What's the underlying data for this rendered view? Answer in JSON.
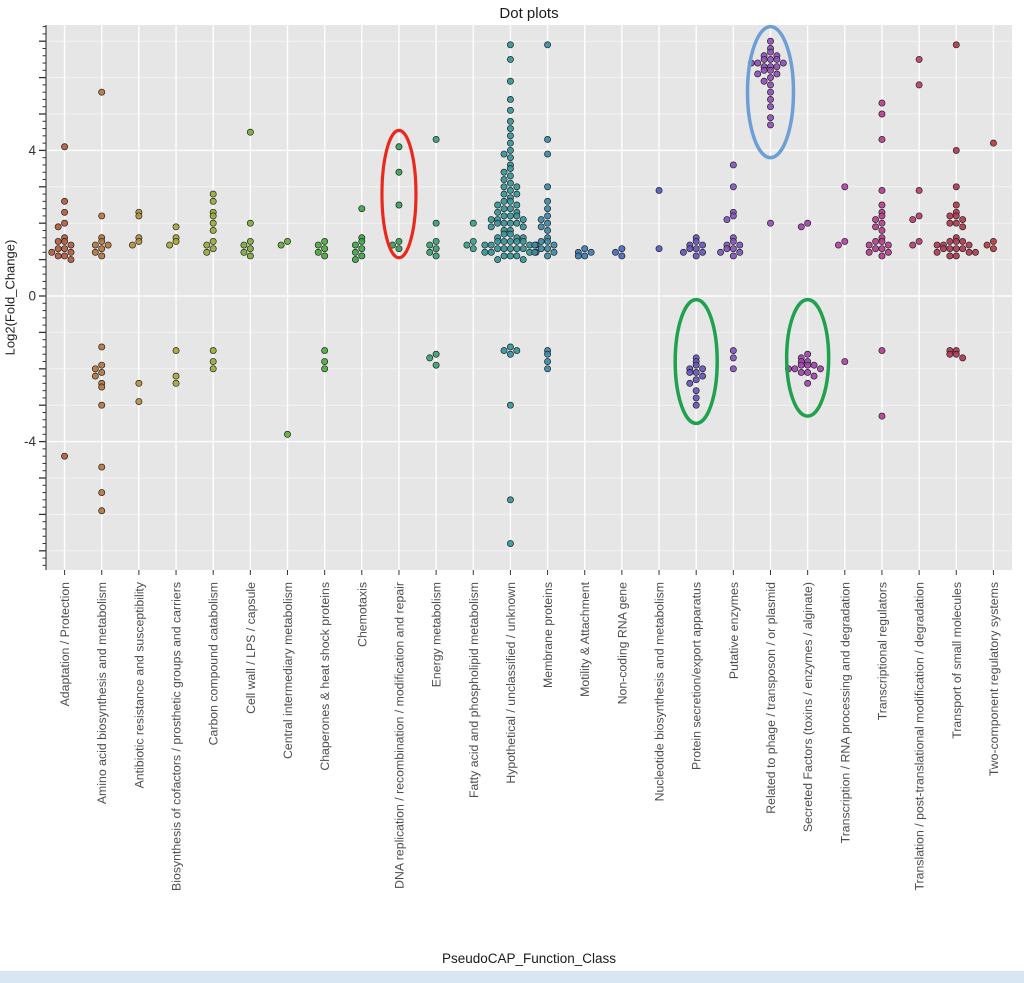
{
  "title": "Dot plots",
  "axes": {
    "x_title": "PseudoCAP_Function_Class",
    "y_title": "Log2(Fold_Change)",
    "y_tick_labels": [
      "4",
      "0",
      "-4"
    ],
    "y_tick_values": [
      4,
      0,
      -4
    ]
  },
  "colors": {
    "panel_bg": "#e6e6e6",
    "grid": "#ffffff",
    "dot_stroke": "#222222",
    "axis_text": "#4d4d4d",
    "tick_color": "#333333",
    "bottom_strip": "#d8e6f3",
    "annotation_red": "#e8291c",
    "annotation_blue": "#6d9ed6",
    "annotation_green": "#1fa14e"
  },
  "category_colors": [
    "hsl(15,50%,47%)",
    "hsl(29,50%,47%)",
    "hsl(43,50%,47%)",
    "hsl(57,50%,45%)",
    "hsl(71,50%,45%)",
    "hsl(85,50%,45%)",
    "hsl(98,50%,45%)",
    "hsl(112,50%,45%)",
    "hsl(126,50%,44%)",
    "hsl(140,50%,42%)",
    "hsl(154,50%,42%)",
    "hsl(168,50%,42%)",
    "hsl(182,50%,40%)",
    "hsl(196,50%,44%)",
    "hsl(209,50%,48%)",
    "hsl(223,50%,52%)",
    "hsl(237,45%,54%)",
    "hsl(251,45%,54%)",
    "hsl(265,45%,54%)",
    "hsl(278,45%,52%)",
    "hsl(292,45%,48%)",
    "hsl(306,48%,48%)",
    "hsl(320,50%,48%)",
    "hsl(334,50%,48%)",
    "hsl(347,52%,46%)",
    "hsl(1,52%,47%)"
  ],
  "chart_data": {
    "type": "scatter",
    "title": "Dot plots",
    "xlabel": "PseudoCAP_Function_Class",
    "ylabel": "Log2(Fold_Change)",
    "ylim": [
      -7.6,
      7.5
    ],
    "y_major_ticks": [
      4,
      0,
      -4
    ],
    "grid": true,
    "legend": "none",
    "categories": [
      "Adaptation / Protection",
      "Amino acid biosynthesis and metabolism",
      "Antibiotic resistance and susceptibility",
      "Biosynthesis of cofactors / prosthetic groups and carriers",
      "Carbon compound catabolism",
      "Cell wall / LPS / capsule",
      "Central intermediary metabolism",
      "Chaperones & heat shock proteins",
      "Chemotaxis",
      "DNA replication / recombination / modification and repair",
      "Energy metabolism",
      "Fatty acid and phospholipid metabolism",
      "Hypothetical / unclassified / unknown",
      "Membrane proteins",
      "Motility & Attachment",
      "Non-coding RNA gene",
      "Nucleotide biosynthesis and metabolism",
      "Protein secretion/export apparatus",
      "Putative enzymes",
      "Related to phage / transposon / or plasmid",
      "Secreted Factors (toxins / enzymes / alginate)",
      "Transcription / RNA processing and degradation",
      "Transcriptional regulators",
      "Translation / post-translational modification / degradation",
      "Transport of small molecules",
      "Two-component regulatory systems"
    ],
    "series": [
      {
        "name": "Adaptation / Protection",
        "values": [
          4.1,
          2.6,
          2.3,
          2.0,
          1.9,
          1.6,
          1.5,
          1.5,
          1.4,
          1.3,
          1.3,
          1.2,
          1.2,
          1.1,
          1.1,
          1.0,
          -4.4
        ]
      },
      {
        "name": "Amino acid biosynthesis and metabolism",
        "values": [
          5.6,
          2.2,
          1.6,
          1.5,
          1.4,
          1.4,
          1.3,
          1.2,
          1.1,
          -1.4,
          -1.9,
          -2.0,
          -2.1,
          -2.2,
          -2.4,
          -2.5,
          -3.0,
          -4.7,
          -5.4,
          -5.9
        ]
      },
      {
        "name": "Antibiotic resistance and susceptibility",
        "values": [
          2.3,
          2.2,
          1.6,
          1.5,
          1.4,
          -2.4,
          -2.9
        ]
      },
      {
        "name": "Biosynthesis of cofactors / prosthetic groups and carriers",
        "values": [
          1.9,
          1.6,
          1.5,
          1.4,
          -1.5,
          -2.2,
          -2.4
        ]
      },
      {
        "name": "Carbon compound catabolism",
        "values": [
          2.8,
          2.6,
          2.3,
          2.2,
          2.0,
          1.8,
          1.5,
          1.4,
          1.3,
          1.2,
          -1.5,
          -1.8,
          -2.0
        ]
      },
      {
        "name": "Cell wall / LPS / capsule",
        "values": [
          4.5,
          2.0,
          1.5,
          1.4,
          1.3,
          1.2,
          1.1
        ]
      },
      {
        "name": "Central intermediary metabolism",
        "values": [
          1.5,
          1.4,
          -3.8
        ]
      },
      {
        "name": "Chaperones & heat shock proteins",
        "values": [
          1.5,
          1.4,
          1.3,
          1.2,
          1.1,
          -1.5,
          -1.8,
          -2.0
        ]
      },
      {
        "name": "Chemotaxis",
        "values": [
          2.4,
          1.6,
          1.5,
          1.4,
          1.3,
          1.2,
          1.1,
          1.0
        ]
      },
      {
        "name": "DNA replication / recombination / modification and repair",
        "values": [
          4.1,
          3.4,
          2.5,
          1.5,
          1.4,
          1.3
        ]
      },
      {
        "name": "Energy metabolism",
        "values": [
          4.3,
          2.0,
          1.5,
          1.4,
          1.3,
          1.2,
          1.1,
          -1.6,
          -1.7,
          -1.9
        ]
      },
      {
        "name": "Fatty acid and phospholipid metabolism",
        "values": [
          2.0,
          1.5,
          1.4,
          1.3
        ]
      },
      {
        "name": "Hypothetical / unclassified / unknown",
        "values": [
          6.9,
          6.5,
          5.9,
          5.4,
          5.1,
          4.8,
          4.6,
          4.4,
          4.2,
          4.0,
          3.9,
          3.8,
          3.6,
          3.5,
          3.4,
          3.3,
          3.2,
          3.1,
          3.0,
          3.0,
          2.9,
          2.8,
          2.8,
          2.7,
          2.6,
          2.6,
          2.5,
          2.5,
          2.4,
          2.4,
          2.3,
          2.3,
          2.2,
          2.2,
          2.2,
          2.1,
          2.1,
          2.1,
          2.0,
          2.0,
          2.0,
          2.0,
          1.9,
          1.9,
          1.8,
          1.8,
          1.7,
          1.7,
          1.6,
          1.6,
          1.6,
          1.5,
          1.5,
          1.5,
          1.5,
          1.5,
          1.4,
          1.4,
          1.4,
          1.4,
          1.3,
          1.3,
          1.3,
          1.3,
          1.3,
          1.2,
          1.2,
          1.2,
          1.2,
          1.1,
          1.1,
          1.1,
          1.0,
          1.0,
          -1.4,
          -1.5,
          -1.5,
          -1.6,
          -3.0,
          -5.6,
          -6.8
        ]
      },
      {
        "name": "Membrane proteins",
        "values": [
          6.9,
          4.3,
          3.9,
          3.0,
          2.6,
          2.4,
          2.2,
          2.1,
          2.0,
          1.9,
          1.8,
          1.6,
          1.5,
          1.5,
          1.4,
          1.4,
          1.3,
          1.3,
          1.2,
          1.2,
          1.1,
          -1.5,
          -1.6,
          -1.8,
          -2.0
        ]
      },
      {
        "name": "Motility & Attachment",
        "values": [
          1.3,
          1.2,
          1.2,
          1.1,
          1.1
        ]
      },
      {
        "name": "Non-coding RNA gene",
        "values": [
          1.3,
          1.2,
          1.1
        ]
      },
      {
        "name": "Nucleotide biosynthesis and metabolism",
        "values": [
          2.9,
          1.3
        ]
      },
      {
        "name": "Protein secretion/export apparatus",
        "values": [
          1.6,
          1.5,
          1.4,
          1.4,
          1.3,
          1.3,
          1.2,
          1.2,
          1.1,
          -1.7,
          -1.8,
          -1.9,
          -2.0,
          -2.0,
          -2.1,
          -2.1,
          -2.2,
          -2.3,
          -2.4,
          -2.6,
          -2.8,
          -3.0
        ]
      },
      {
        "name": "Putative enzymes",
        "values": [
          3.6,
          3.0,
          2.3,
          2.2,
          2.1,
          1.6,
          1.5,
          1.4,
          1.4,
          1.3,
          1.3,
          1.2,
          1.2,
          1.1,
          -1.5,
          -1.7,
          -2.0
        ]
      },
      {
        "name": "Related to phage / transposon / or plasmid",
        "values": [
          7.0,
          6.8,
          6.7,
          6.6,
          6.6,
          6.5,
          6.5,
          6.5,
          6.4,
          6.4,
          6.4,
          6.3,
          6.3,
          6.3,
          6.2,
          6.2,
          6.1,
          6.1,
          6.0,
          5.9,
          5.8,
          5.6,
          5.4,
          5.2,
          4.9,
          4.7,
          2.0
        ]
      },
      {
        "name": "Secreted Factors (toxins / enzymes / alginate)",
        "values": [
          2.0,
          1.9,
          -1.6,
          -1.7,
          -1.8,
          -1.8,
          -1.9,
          -1.9,
          -1.9,
          -2.0,
          -2.0,
          -2.0,
          -2.1,
          -2.1,
          -2.2,
          -2.4
        ]
      },
      {
        "name": "Transcription / RNA processing and degradation",
        "values": [
          3.0,
          1.5,
          1.4,
          -1.8
        ]
      },
      {
        "name": "Transcriptional regulators",
        "values": [
          5.3,
          5.0,
          4.3,
          2.9,
          2.5,
          2.3,
          2.2,
          2.1,
          2.0,
          1.9,
          1.8,
          1.6,
          1.5,
          1.5,
          1.4,
          1.4,
          1.3,
          1.3,
          1.2,
          1.2,
          1.1,
          -1.5,
          -3.3
        ]
      },
      {
        "name": "Translation / post-translational modification / degradation",
        "values": [
          6.5,
          5.8,
          2.9,
          2.2,
          2.1,
          1.5,
          1.4
        ]
      },
      {
        "name": "Transport of small molecules",
        "values": [
          6.9,
          4.0,
          3.0,
          2.5,
          2.3,
          2.2,
          2.2,
          2.1,
          2.0,
          2.0,
          1.9,
          1.6,
          1.5,
          1.5,
          1.5,
          1.4,
          1.4,
          1.4,
          1.3,
          1.3,
          1.3,
          1.3,
          1.2,
          1.2,
          1.2,
          1.1,
          1.1,
          -1.5,
          -1.5,
          -1.6,
          -1.6,
          -1.7
        ]
      },
      {
        "name": "Two-component regulatory systems",
        "values": [
          4.2,
          1.5,
          1.4,
          1.3
        ]
      }
    ],
    "annotations": [
      {
        "shape": "ellipse",
        "category": "DNA replication / recombination / modification and repair",
        "y_center": 2.8,
        "y_radius": 1.75,
        "x_radius_px": 17,
        "color": "#e8291c",
        "stroke_width": 3.2
      },
      {
        "shape": "ellipse",
        "category": "Related to phage / transposon / or plasmid",
        "y_center": 5.6,
        "y_radius": 1.8,
        "x_radius_px": 23,
        "color": "#6d9ed6",
        "stroke_width": 3.5
      },
      {
        "shape": "ellipse",
        "category": "Protein secretion/export apparatus",
        "y_center": -1.8,
        "y_radius": 1.7,
        "x_radius_px": 21,
        "color": "#1fa14e",
        "stroke_width": 3.5
      },
      {
        "shape": "ellipse",
        "category": "Secreted Factors (toxins / enzymes / alginate)",
        "y_center": -1.7,
        "y_radius": 1.6,
        "x_radius_px": 21,
        "color": "#1fa14e",
        "stroke_width": 3.5
      }
    ]
  }
}
